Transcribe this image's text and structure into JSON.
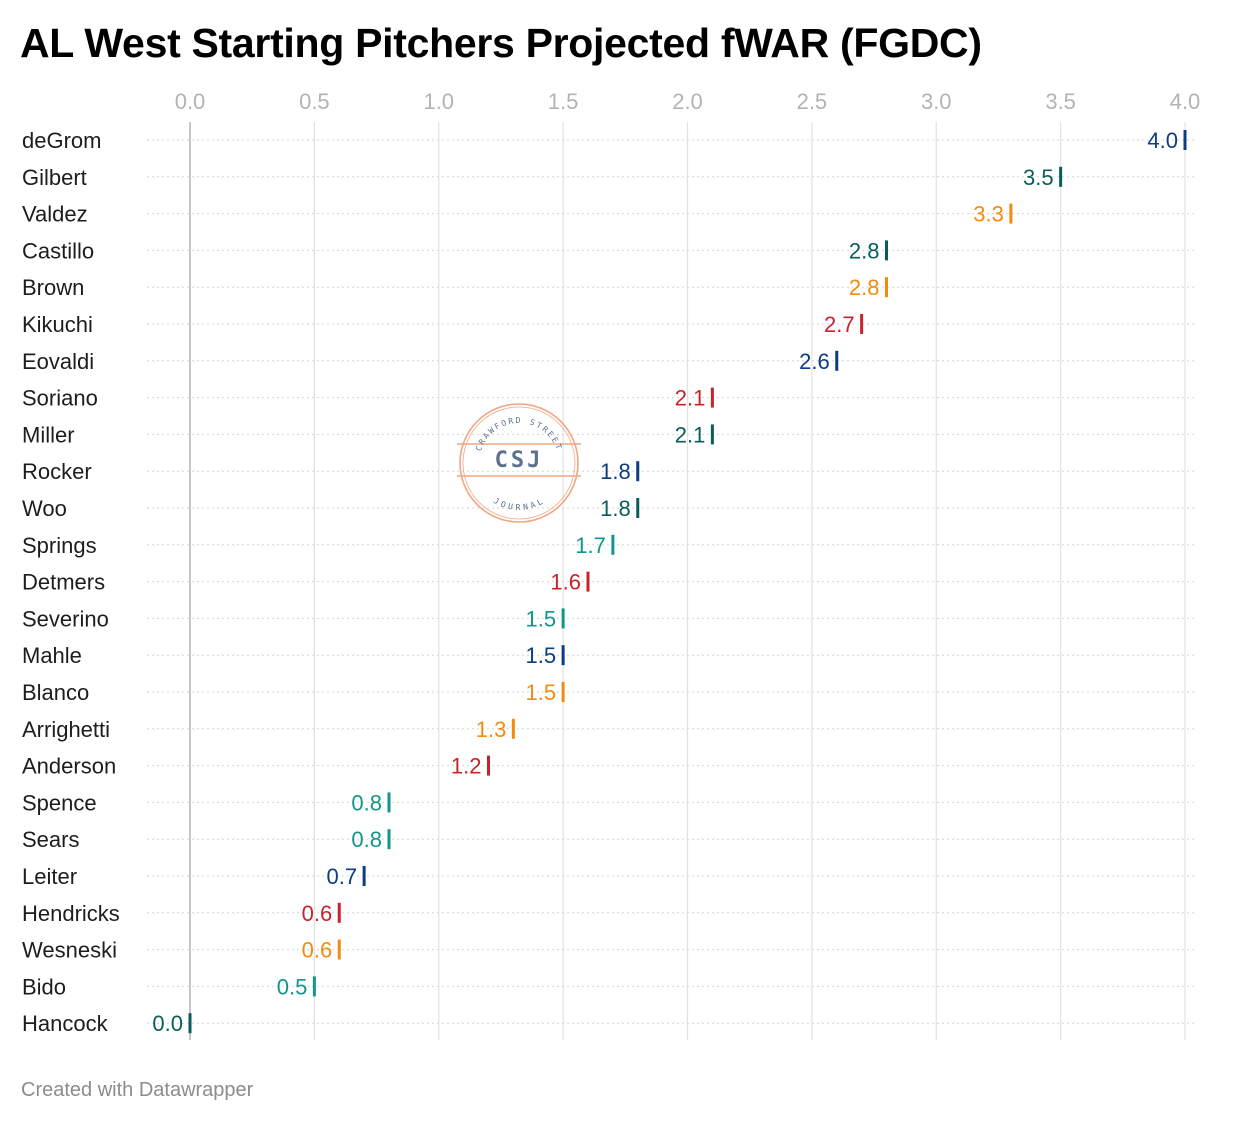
{
  "title": "AL West Starting Pitchers Projected fWAR (FGDC)",
  "footer": "Created with Datawrapper",
  "watermark": {
    "top_text": "CRAWFORD STREET",
    "main_text": "CSJ",
    "bottom_text": "JOURNAL",
    "color": "#ef9d76"
  },
  "colors": {
    "navy": "#0b3c84",
    "dark_teal": "#0a5e5a",
    "orange": "#f28c0f",
    "red": "#c8232c",
    "teal": "#11968a"
  },
  "chart_data": {
    "type": "dot",
    "title": "AL West Starting Pitchers Projected fWAR (FGDC)",
    "xlim": [
      0,
      4
    ],
    "x_ticks": [
      "0.0",
      "0.5",
      "1.0",
      "1.5",
      "2.0",
      "2.5",
      "3.0",
      "3.5",
      "4.0"
    ],
    "x_tick_values": [
      0,
      0.5,
      1,
      1.5,
      2,
      2.5,
      3,
      3.5,
      4
    ],
    "grid": true,
    "axis_position": "top",
    "points": [
      {
        "name": "deGrom",
        "value": 4.0,
        "label": "4.0",
        "color": "navy"
      },
      {
        "name": "Gilbert",
        "value": 3.5,
        "label": "3.5",
        "color": "dark_teal"
      },
      {
        "name": "Valdez",
        "value": 3.3,
        "label": "3.3",
        "color": "orange"
      },
      {
        "name": "Castillo",
        "value": 2.8,
        "label": "2.8",
        "color": "dark_teal"
      },
      {
        "name": "Brown",
        "value": 2.8,
        "label": "2.8",
        "color": "orange"
      },
      {
        "name": "Kikuchi",
        "value": 2.7,
        "label": "2.7",
        "color": "red"
      },
      {
        "name": "Eovaldi",
        "value": 2.6,
        "label": "2.6",
        "color": "navy"
      },
      {
        "name": "Soriano",
        "value": 2.1,
        "label": "2.1",
        "color": "red"
      },
      {
        "name": "Miller",
        "value": 2.1,
        "label": "2.1",
        "color": "dark_teal"
      },
      {
        "name": "Rocker",
        "value": 1.8,
        "label": "1.8",
        "color": "navy"
      },
      {
        "name": "Woo",
        "value": 1.8,
        "label": "1.8",
        "color": "dark_teal"
      },
      {
        "name": "Springs",
        "value": 1.7,
        "label": "1.7",
        "color": "teal"
      },
      {
        "name": "Detmers",
        "value": 1.6,
        "label": "1.6",
        "color": "red"
      },
      {
        "name": "Severino",
        "value": 1.5,
        "label": "1.5",
        "color": "teal"
      },
      {
        "name": "Mahle",
        "value": 1.5,
        "label": "1.5",
        "color": "navy"
      },
      {
        "name": "Blanco",
        "value": 1.5,
        "label": "1.5",
        "color": "orange"
      },
      {
        "name": "Arrighetti",
        "value": 1.3,
        "label": "1.3",
        "color": "orange"
      },
      {
        "name": "Anderson",
        "value": 1.2,
        "label": "1.2",
        "color": "red"
      },
      {
        "name": "Spence",
        "value": 0.8,
        "label": "0.8",
        "color": "teal"
      },
      {
        "name": "Sears",
        "value": 0.8,
        "label": "0.8",
        "color": "teal"
      },
      {
        "name": "Leiter",
        "value": 0.7,
        "label": "0.7",
        "color": "navy"
      },
      {
        "name": "Hendricks",
        "value": 0.6,
        "label": "0.6",
        "color": "red"
      },
      {
        "name": "Wesneski",
        "value": 0.6,
        "label": "0.6",
        "color": "orange"
      },
      {
        "name": "Bido",
        "value": 0.5,
        "label": "0.5",
        "color": "teal"
      },
      {
        "name": "Hancock",
        "value": 0.0,
        "label": "0.0",
        "color": "dark_teal"
      }
    ]
  }
}
